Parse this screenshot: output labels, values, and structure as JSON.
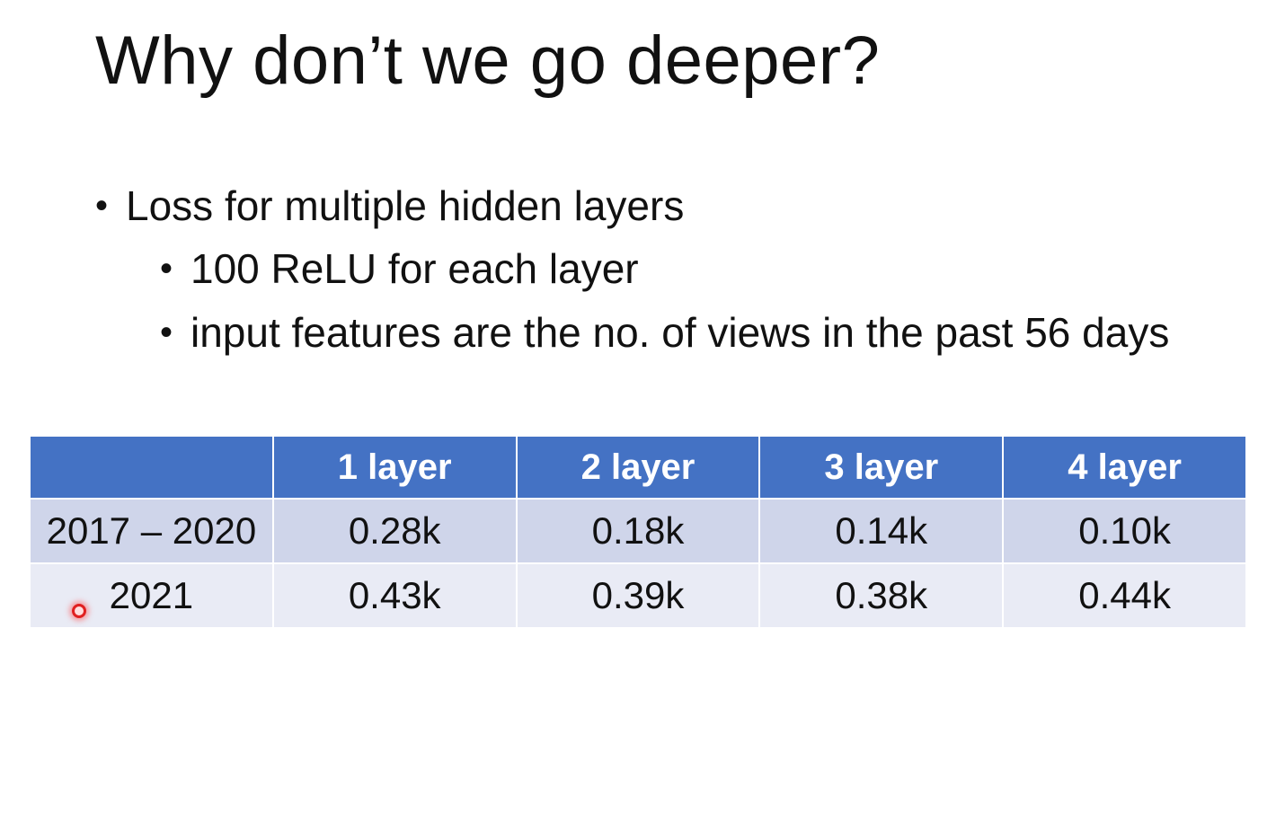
{
  "title": "Why don’t we go deeper?",
  "bullets": {
    "main": "Loss for multiple hidden layers",
    "sub1": "100 ReLU for each layer",
    "sub2": "input features are the no. of views in the past 56 days"
  },
  "table": {
    "headers": [
      "",
      "1 layer",
      "2 layer",
      "3 layer",
      "4 layer"
    ],
    "rows": [
      {
        "label": "2017 – 2020",
        "values": [
          "0.28k",
          "0.18k",
          "0.14k",
          "0.10k"
        ]
      },
      {
        "label": "2021",
        "values": [
          "0.43k",
          "0.39k",
          "0.38k",
          "0.44k"
        ]
      }
    ]
  },
  "colors": {
    "header": "#4472c4",
    "row_odd": "#cfd5ea",
    "row_even": "#e9ebf5"
  }
}
